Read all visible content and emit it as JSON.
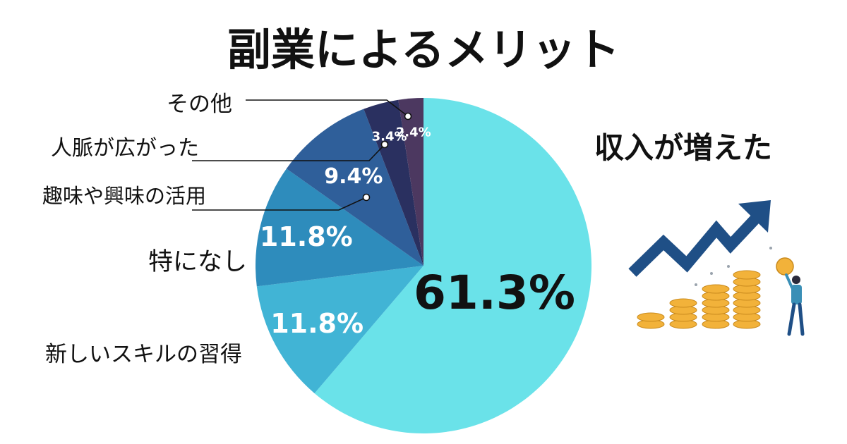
{
  "chart_data": {
    "type": "pie",
    "title": "副業によるメリット",
    "categories": [
      "収入が増えた",
      "新しいスキルの習得",
      "特になし",
      "趣味や興味の活用",
      "人脈が広がった",
      "その他"
    ],
    "values": [
      61.3,
      11.8,
      11.8,
      9.4,
      3.4,
      2.4
    ],
    "value_labels": [
      "61.3%",
      "11.8%",
      "11.8%",
      "9.4%",
      "3.4%",
      "2.4%"
    ],
    "colors": [
      "#6ae2e9",
      "#41b4d5",
      "#2e8cbc",
      "#2f5f9a",
      "#2a3060",
      "#4c3860"
    ],
    "start_angle_deg": 0,
    "direction": "clockwise",
    "legend": "none"
  },
  "decoration": {
    "icon": "income-growth-illustration-icon",
    "arrow_color": "#1f4f86",
    "coin_color": "#f2b23a",
    "person_color": "#3a8fb6"
  }
}
